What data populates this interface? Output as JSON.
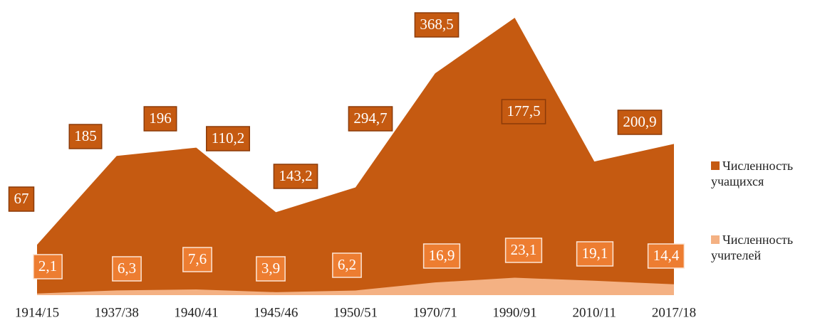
{
  "chart_data": {
    "type": "area",
    "categories": [
      "1914/15",
      "1937/38",
      "1940/41",
      "1945/46",
      "1950/51",
      "1970/71",
      "1990/91",
      "2010/11",
      "2017/18"
    ],
    "series": [
      {
        "name": "Численность учащихся",
        "color": "#c55a11",
        "values": [
          67,
          185,
          196,
          110.2,
          143.2,
          294.7,
          368.5,
          177.5,
          200.9
        ],
        "value_labels": [
          "67",
          "185",
          "196",
          "110,2",
          "143,2",
          "294,7",
          "368,5",
          "177,5",
          "200,9"
        ]
      },
      {
        "name": "Численность учителей",
        "color": "#f4b183",
        "values": [
          2.1,
          6.3,
          7.6,
          3.9,
          6.2,
          16.9,
          23.1,
          19.1,
          14.4
        ],
        "value_labels": [
          "2,1",
          "6,3",
          "7,6",
          "3,9",
          "6,2",
          "16,9",
          "23,1",
          "19,1",
          "14,4"
        ]
      }
    ],
    "legend": "right"
  }
}
